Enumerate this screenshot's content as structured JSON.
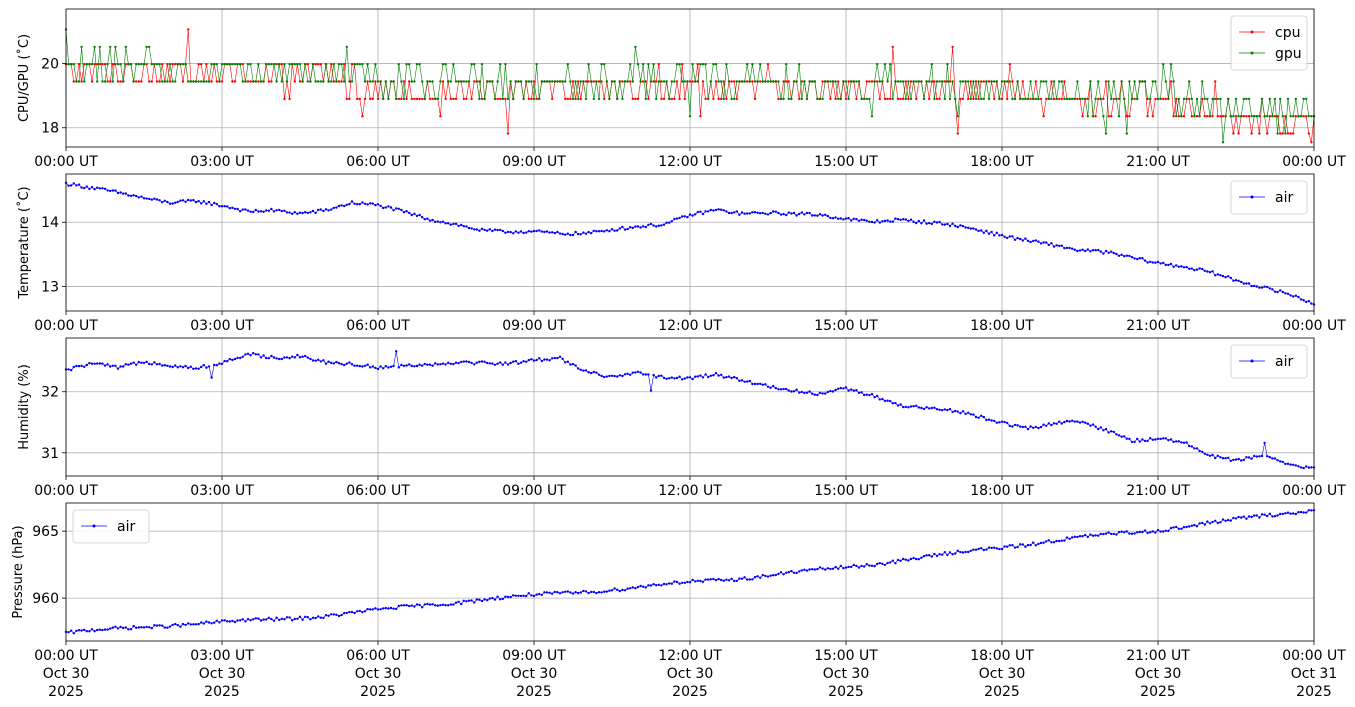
{
  "chart_data": [
    {
      "type": "line",
      "ylabel": "CPU/GPU (˚C)",
      "ylim": [
        17.4,
        21.7
      ],
      "yticks": [
        18,
        20
      ],
      "xticks": [
        "00:00 UT",
        "03:00 UT",
        "06:00 UT",
        "09:00 UT",
        "12:00 UT",
        "15:00 UT",
        "18:00 UT",
        "21:00 UT",
        "00:00 UT"
      ],
      "x_range_hours": [
        0,
        24
      ],
      "grid": true,
      "legend_position": "upper right",
      "series": [
        {
          "name": "cpu",
          "color": "#ff0000",
          "x": [
            0,
            1,
            2,
            3,
            4,
            5,
            6,
            7,
            8,
            9,
            10,
            11,
            12,
            13,
            14,
            15,
            16,
            17,
            18,
            19,
            20,
            21,
            22,
            23,
            24
          ],
          "y": [
            19.7,
            19.8,
            19.7,
            19.6,
            19.6,
            19.6,
            19.3,
            19.2,
            19.2,
            19.2,
            19.2,
            19.3,
            19.4,
            19.3,
            19.3,
            19.2,
            19.2,
            19.2,
            19.0,
            18.9,
            18.9,
            18.9,
            18.6,
            18.3,
            18.2
          ]
        },
        {
          "name": "gpu",
          "color": "#008000",
          "x": [
            0,
            1,
            2,
            3,
            4,
            5,
            6,
            7,
            8,
            9,
            10,
            11,
            12,
            13,
            14,
            15,
            16,
            17,
            18,
            19,
            20,
            21,
            22,
            23,
            24
          ],
          "y": [
            19.9,
            19.9,
            19.8,
            19.8,
            19.8,
            19.8,
            19.6,
            19.4,
            19.3,
            19.3,
            19.3,
            19.4,
            19.6,
            19.5,
            19.5,
            19.4,
            19.3,
            19.3,
            19.2,
            19.1,
            19.0,
            19.0,
            18.7,
            18.5,
            18.3
          ]
        }
      ]
    },
    {
      "type": "line",
      "ylabel": "Temperature (˚C)",
      "ylim": [
        12.62,
        14.75
      ],
      "yticks": [
        13,
        14
      ],
      "xticks": [
        "00:00 UT",
        "03:00 UT",
        "06:00 UT",
        "09:00 UT",
        "12:00 UT",
        "15:00 UT",
        "18:00 UT",
        "21:00 UT",
        "00:00 UT"
      ],
      "x_range_hours": [
        0,
        24
      ],
      "grid": true,
      "legend_position": "upper right",
      "series": [
        {
          "name": "air",
          "color": "#0000ff",
          "x": [
            0,
            0.5,
            1,
            1.5,
            2,
            2.5,
            3,
            3.5,
            4,
            4.5,
            5,
            5.5,
            6,
            6.5,
            7,
            7.5,
            8,
            8.5,
            9,
            9.5,
            10,
            10.5,
            11,
            11.5,
            12,
            12.5,
            13,
            13.5,
            14,
            14.5,
            15,
            15.5,
            16,
            16.5,
            17,
            17.5,
            18,
            18.5,
            19,
            19.5,
            20,
            20.5,
            21,
            21.5,
            22,
            22.5,
            23,
            23.5,
            24
          ],
          "y": [
            14.6,
            14.52,
            14.45,
            14.38,
            14.32,
            14.34,
            14.25,
            14.15,
            14.18,
            14.15,
            14.2,
            14.3,
            14.25,
            14.15,
            14.05,
            13.98,
            13.88,
            13.84,
            13.84,
            13.82,
            13.84,
            13.9,
            13.93,
            13.95,
            14.1,
            14.2,
            14.15,
            14.15,
            14.12,
            14.1,
            14.05,
            14.02,
            14.05,
            14.0,
            13.95,
            13.88,
            13.8,
            13.73,
            13.65,
            13.55,
            13.52,
            13.45,
            13.38,
            13.32,
            13.22,
            13.08,
            12.98,
            12.9,
            12.75
          ]
        }
      ]
    },
    {
      "type": "line",
      "ylabel": "Humidity (%)",
      "ylim": [
        30.62,
        32.88
      ],
      "yticks": [
        31,
        32
      ],
      "xticks": [
        "00:00 UT",
        "03:00 UT",
        "06:00 UT",
        "09:00 UT",
        "12:00 UT",
        "15:00 UT",
        "18:00 UT",
        "21:00 UT",
        "00:00 UT"
      ],
      "x_range_hours": [
        0,
        24
      ],
      "grid": true,
      "legend_position": "upper right",
      "series": [
        {
          "name": "air",
          "color": "#0000ff",
          "x": [
            0,
            0.5,
            1,
            1.5,
            2,
            2.5,
            3,
            3.5,
            4,
            4.5,
            5,
            5.5,
            6,
            6.5,
            7,
            7.5,
            8,
            8.5,
            9,
            9.5,
            10,
            10.5,
            11,
            11.5,
            12,
            12.5,
            13,
            13.5,
            14,
            14.5,
            15,
            15.5,
            16,
            16.5,
            17,
            17.5,
            18,
            18.5,
            19,
            19.5,
            20,
            20.5,
            21,
            21.5,
            22,
            22.5,
            23,
            23.5,
            24
          ],
          "y": [
            32.35,
            32.45,
            32.38,
            32.5,
            32.45,
            32.4,
            32.45,
            32.6,
            32.55,
            32.6,
            32.5,
            32.45,
            32.38,
            32.42,
            32.45,
            32.5,
            32.48,
            32.45,
            32.5,
            32.55,
            32.35,
            32.25,
            32.3,
            32.22,
            32.2,
            32.3,
            32.2,
            32.1,
            32.0,
            31.95,
            32.05,
            31.95,
            31.8,
            31.72,
            31.68,
            31.6,
            31.5,
            31.42,
            31.48,
            31.5,
            31.35,
            31.2,
            31.25,
            31.18,
            30.95,
            30.85,
            30.95,
            30.82,
            30.76
          ]
        }
      ]
    },
    {
      "type": "line",
      "ylabel": "Pressure (hPa)",
      "ylim": [
        956.8,
        967.1
      ],
      "yticks": [
        960,
        965
      ],
      "xticks": [
        "00:00 UT",
        "03:00 UT",
        "06:00 UT",
        "09:00 UT",
        "12:00 UT",
        "15:00 UT",
        "18:00 UT",
        "21:00 UT",
        "00:00 UT"
      ],
      "xticks_date": [
        "Oct 30",
        "Oct 30",
        "Oct 30",
        "Oct 30",
        "Oct 30",
        "Oct 30",
        "Oct 30",
        "Oct 30",
        "Oct 31"
      ],
      "xticks_year": [
        "2025",
        "2025",
        "2025",
        "2025",
        "2025",
        "2025",
        "2025",
        "2025",
        "2025"
      ],
      "x_range_hours": [
        0,
        24
      ],
      "grid": true,
      "legend_position": "upper left",
      "series": [
        {
          "name": "air",
          "color": "#0000ff",
          "x": [
            0,
            1,
            2,
            3,
            4,
            5,
            6,
            7,
            8,
            9,
            10,
            11,
            12,
            13,
            14,
            15,
            16,
            17,
            18,
            19,
            20,
            21,
            22,
            23,
            24
          ],
          "y": [
            957.4,
            957.7,
            958.0,
            958.2,
            958.4,
            958.7,
            959.1,
            959.5,
            959.9,
            960.2,
            960.5,
            960.8,
            961.2,
            961.5,
            961.9,
            962.3,
            962.8,
            963.3,
            963.8,
            964.3,
            964.7,
            965.1,
            965.6,
            966.1,
            966.6
          ]
        }
      ]
    }
  ]
}
